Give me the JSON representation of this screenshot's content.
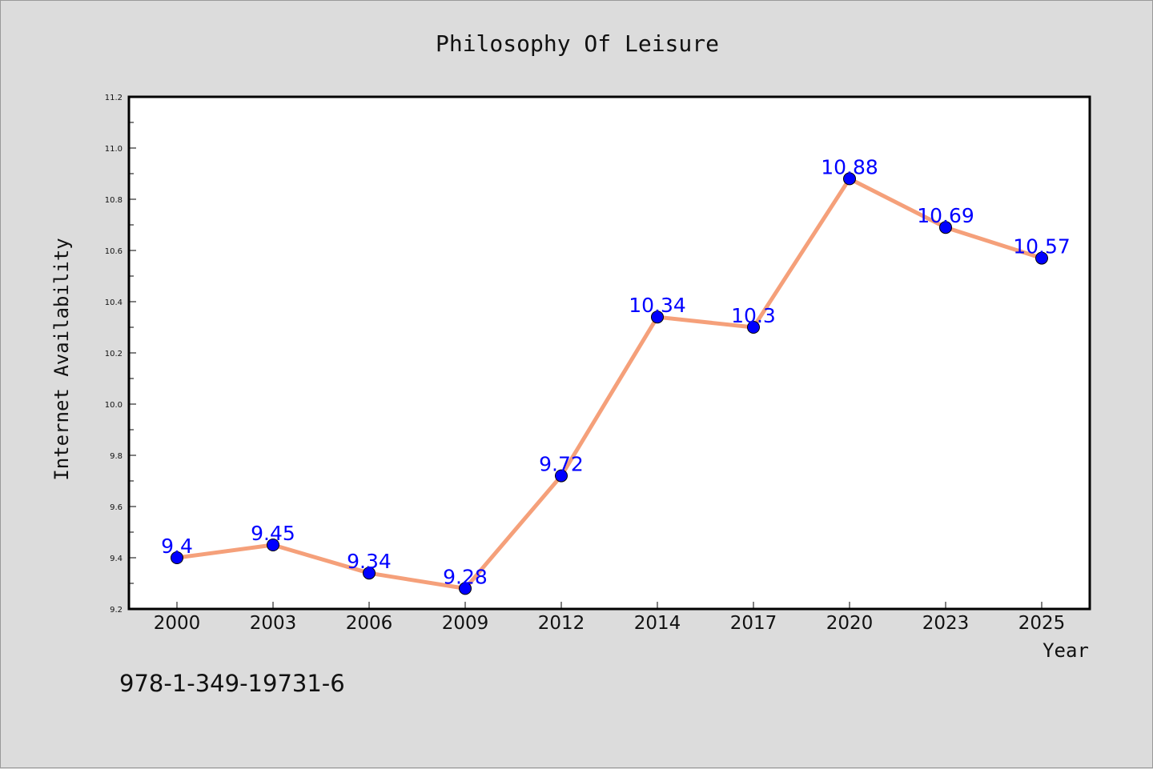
{
  "chart_data": {
    "type": "line",
    "title": "Philosophy Of Leisure",
    "xlabel": "Year",
    "ylabel": "Internet Availability",
    "categories": [
      "2000",
      "2003",
      "2006",
      "2009",
      "2012",
      "2014",
      "2017",
      "2020",
      "2023",
      "2025"
    ],
    "series": [
      {
        "values": [
          9.4,
          9.45,
          9.34,
          9.28,
          9.72,
          10.34,
          10.3,
          10.88,
          10.69,
          10.57
        ],
        "data_labels": [
          "9.4",
          "9.45",
          "9.34",
          "9.28",
          "9.72",
          "10.34",
          "10.3",
          "10.88",
          "10.69",
          "10.57"
        ],
        "line_color": "#f5a07a",
        "marker_color": "#0000ff"
      }
    ],
    "ylim": [
      9.2,
      11.2
    ],
    "yticks": [
      "9.2",
      "9.4",
      "9.6",
      "9.8",
      "10.0",
      "10.2",
      "10.4",
      "10.6",
      "10.8",
      "11.0",
      "11.2"
    ],
    "grid": false,
    "legend": "none"
  },
  "footer_code": "978-1-349-19731-6",
  "colors": {
    "background": "#dcdcdc",
    "plot_background": "#ffffff",
    "axis": "#000000",
    "line": "#f5a07a",
    "marker": "#0000ff",
    "data_label": "#0000ff"
  }
}
